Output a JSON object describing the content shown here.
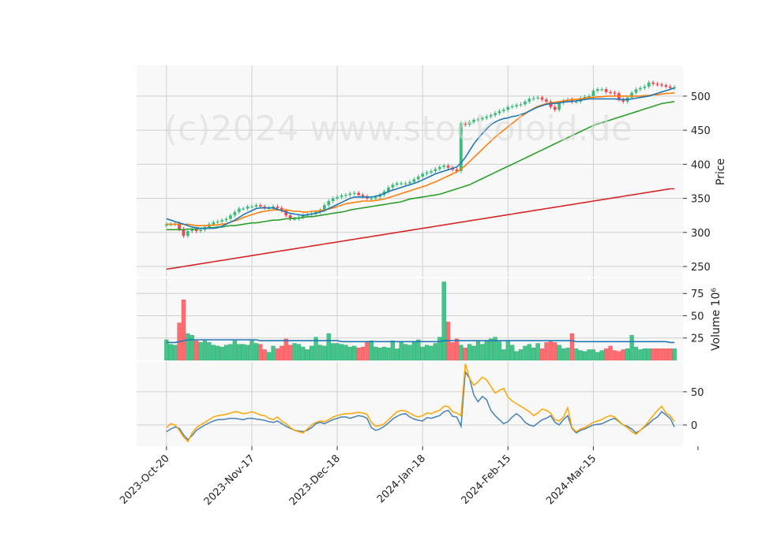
{
  "watermark": "(c)2024 www.stockoloid.de",
  "colors": {
    "up": "#3dbb7a",
    "down": "#f0454e",
    "vol_up": "#43c58a",
    "vol_down": "#ff6b6e",
    "ma_fast": "#1f77b4",
    "ma_mid": "#ff7f0e",
    "ma_slow": "#2ca02c",
    "ma_long": "#d62728",
    "vol_ma": "#1f77b4",
    "osc_a": "#4682b4",
    "osc_b": "#ffa500",
    "grid": "#d0d0d0",
    "panel_bg": "#f8f8f8"
  },
  "chart_data": [
    {
      "type": "candlestick",
      "panel": "price",
      "ylabel": "Price",
      "ylim": [
        235,
        545
      ],
      "yticks": [
        250,
        300,
        350,
        400,
        450,
        500
      ],
      "x_tick_labels": [
        "2023-Oct-20",
        "2023-Nov-17",
        "2023-Dec-18",
        "2024-Jan-18",
        "2024-Feb-15",
        "2024-Mar-15"
      ],
      "x_tick_indices": [
        0,
        20,
        40,
        60,
        80,
        100
      ],
      "x_range": [
        -7,
        121
      ],
      "close": [
        312,
        312,
        313,
        305,
        295,
        302,
        305,
        302,
        304,
        308,
        312,
        315,
        316,
        318,
        320,
        325,
        330,
        335,
        335,
        338,
        338,
        340,
        338,
        336,
        336,
        338,
        336,
        332,
        325,
        320,
        320,
        322,
        325,
        326,
        328,
        330,
        333,
        340,
        346,
        350,
        352,
        354,
        355,
        357,
        358,
        355,
        353,
        350,
        350,
        352,
        355,
        360,
        366,
        370,
        372,
        372,
        372,
        374,
        378,
        382,
        386,
        388,
        390,
        393,
        396,
        398,
        395,
        392,
        390,
        460,
        458,
        462,
        465,
        466,
        468,
        470,
        472,
        475,
        478,
        480,
        484,
        485,
        487,
        488,
        492,
        496,
        497,
        498,
        495,
        492,
        484,
        480,
        490,
        493,
        495,
        492,
        492,
        497,
        499,
        500,
        508,
        510,
        510,
        506,
        505,
        504,
        495,
        492,
        498,
        505,
        510,
        512,
        514,
        520,
        518,
        517,
        516,
        514,
        512,
        513
      ],
      "volume": [
        23,
        18,
        17,
        42,
        68,
        30,
        28,
        22,
        20,
        22,
        20,
        17,
        16,
        15,
        17,
        18,
        22,
        18,
        18,
        17,
        22,
        19,
        18,
        12,
        9,
        16,
        13,
        16,
        24,
        17,
        19,
        18,
        15,
        12,
        16,
        26,
        17,
        16,
        30,
        19,
        19,
        18,
        17,
        15,
        16,
        14,
        15,
        20,
        22,
        15,
        14,
        15,
        14,
        22,
        13,
        20,
        18,
        17,
        21,
        23,
        15,
        17,
        16,
        19,
        26,
        88,
        43,
        20,
        24,
        17,
        14,
        18,
        16,
        21,
        18,
        22,
        24,
        26,
        21,
        12,
        22,
        17,
        10,
        12,
        16,
        18,
        14,
        19,
        13,
        20,
        22,
        20,
        17,
        13,
        14,
        30,
        13,
        11,
        10,
        12,
        12,
        9,
        11,
        13,
        16,
        11,
        10,
        12,
        13,
        28,
        15,
        12,
        13,
        13,
        13,
        13,
        13,
        13,
        13,
        13
      ],
      "indicator_lines": {
        "ma_fast": [
          320,
          318,
          316,
          314,
          312,
          310,
          308,
          307,
          306,
          306,
          306,
          306,
          307,
          309,
          312,
          315,
          318,
          322,
          326,
          329,
          332,
          335,
          336,
          336,
          336,
          336,
          334,
          332,
          330,
          328,
          327,
          326,
          325,
          326,
          327,
          328,
          330,
          332,
          335,
          338,
          341,
          344,
          347,
          350,
          352,
          352,
          352,
          352,
          352,
          353,
          355,
          357,
          360,
          362,
          364,
          366,
          368,
          370,
          372,
          374,
          377,
          380,
          383,
          386,
          388,
          390,
          392,
          394,
          396,
          402,
          410,
          420,
          430,
          438,
          445,
          452,
          458,
          462,
          465,
          467,
          468,
          470,
          471,
          473,
          475,
          478,
          481,
          484,
          486,
          488,
          489,
          489,
          490,
          491,
          492,
          492,
          493,
          494,
          495,
          496,
          496,
          496,
          496,
          496,
          496,
          496,
          495,
          495,
          495,
          496,
          497,
          498,
          499,
          500,
          502,
          504,
          506,
          508,
          510,
          512
        ],
        "ma_mid": [
          312,
          312,
          312,
          312,
          312,
          312,
          311,
          310,
          310,
          310,
          310,
          311,
          311,
          312,
          313,
          315,
          317,
          319,
          322,
          324,
          326,
          328,
          330,
          331,
          332,
          333,
          333,
          333,
          333,
          332,
          331,
          331,
          330,
          330,
          331,
          331,
          332,
          333,
          334,
          336,
          338,
          340,
          342,
          343,
          344,
          345,
          346,
          346,
          346,
          347,
          348,
          349,
          351,
          353,
          355,
          357,
          359,
          361,
          363,
          365,
          367,
          369,
          372,
          374,
          377,
          380,
          383,
          386,
          389,
          393,
          398,
          404,
          410,
          416,
          422,
          428,
          434,
          440,
          445,
          450,
          455,
          460,
          465,
          470,
          474,
          478,
          482,
          485,
          487,
          489,
          490,
          491,
          492,
          493,
          494,
          495,
          495,
          496,
          497,
          498,
          498,
          499,
          499,
          500,
          500,
          500,
          500,
          500,
          500,
          500,
          500,
          500,
          501,
          501,
          502,
          502,
          503,
          504,
          504,
          505
        ],
        "ma_slow": [
          304,
          304,
          304,
          304,
          304,
          305,
          305,
          305,
          306,
          306,
          307,
          307,
          308,
          308,
          309,
          310,
          310,
          311,
          312,
          313,
          314,
          314,
          315,
          316,
          317,
          318,
          318,
          319,
          320,
          320,
          321,
          321,
          322,
          323,
          323,
          324,
          325,
          326,
          327,
          328,
          329,
          330,
          331,
          333,
          334,
          335,
          336,
          337,
          338,
          339,
          340,
          341,
          342,
          343,
          344,
          345,
          347,
          349,
          350,
          351,
          352,
          353,
          354,
          355,
          356,
          358,
          360,
          362,
          364,
          366,
          368,
          370,
          373,
          376,
          379,
          382,
          385,
          388,
          391,
          394,
          397,
          400,
          403,
          406,
          409,
          412,
          415,
          418,
          421,
          424,
          427,
          430,
          433,
          436,
          439,
          442,
          445,
          448,
          451,
          454,
          457,
          459,
          461,
          463,
          465,
          467,
          469,
          471,
          473,
          475,
          477,
          479,
          481,
          483,
          485,
          487,
          489,
          490,
          491,
          492
        ],
        "ma_long": [
          246,
          247,
          248,
          249,
          250,
          251,
          252,
          253,
          254,
          255,
          256,
          257,
          258,
          259,
          260,
          261,
          262,
          263,
          264,
          265,
          266,
          267,
          268,
          269,
          270,
          271,
          272,
          273,
          274,
          275,
          276,
          277,
          278,
          279,
          280,
          281,
          282,
          283,
          284,
          285,
          286,
          287,
          288,
          289,
          290,
          291,
          292,
          293,
          294,
          295,
          296,
          297,
          298,
          299,
          300,
          301,
          302,
          303,
          304,
          305,
          306,
          307,
          308,
          309,
          310,
          311,
          312,
          313,
          314,
          315,
          316,
          317,
          318,
          319,
          320,
          321,
          322,
          323,
          324,
          325,
          326,
          327,
          328,
          329,
          330,
          331,
          332,
          333,
          334,
          335,
          336,
          337,
          338,
          339,
          340,
          341,
          342,
          343,
          344,
          345,
          346,
          347,
          348,
          349,
          350,
          351,
          352,
          353,
          354,
          355,
          356,
          357,
          358,
          359,
          360,
          361,
          362,
          363,
          364,
          364
        ]
      }
    },
    {
      "type": "bar",
      "panel": "volume",
      "ylabel": "Volume  10⁶",
      "ylim": [
        0,
        92
      ],
      "yticks": [
        25,
        50,
        75
      ],
      "vol_ma": [
        20,
        20,
        20,
        21,
        22,
        23,
        23,
        23,
        23,
        23,
        23,
        23,
        23,
        23,
        23,
        23,
        23,
        23,
        23,
        23,
        23,
        23,
        22,
        22,
        22,
        22,
        22,
        22,
        22,
        22,
        22,
        22,
        22,
        22,
        22,
        22,
        22,
        22,
        22,
        22,
        22,
        21,
        21,
        21,
        21,
        21,
        21,
        21,
        21,
        21,
        21,
        21,
        21,
        21,
        21,
        21,
        21,
        21,
        21,
        21,
        21,
        21,
        21,
        21,
        21,
        22,
        22,
        22,
        22,
        22,
        22,
        22,
        22,
        22,
        22,
        22,
        22,
        22,
        22,
        22,
        22,
        22,
        22,
        22,
        22,
        22,
        22,
        22,
        22,
        22,
        22,
        22,
        22,
        22,
        22,
        22,
        21,
        21,
        21,
        21,
        21,
        21,
        21,
        21,
        21,
        21,
        21,
        21,
        21,
        21,
        21,
        21,
        21,
        21,
        21,
        21,
        21,
        21,
        20,
        20
      ]
    },
    {
      "type": "line",
      "panel": "oscillator",
      "ylim": [
        -32,
        95
      ],
      "yticks": [
        0,
        50
      ],
      "series": [
        {
          "key": "osc_a",
          "values": [
            -10,
            -6,
            -3,
            -5,
            -15,
            -22,
            -16,
            -8,
            -4,
            0,
            3,
            6,
            8,
            8,
            9,
            10,
            10,
            9,
            8,
            10,
            10,
            9,
            8,
            7,
            5,
            4,
            6,
            2,
            -2,
            -5,
            -8,
            -9,
            -10,
            -8,
            -4,
            2,
            4,
            2,
            5,
            8,
            10,
            12,
            12,
            10,
            12,
            14,
            13,
            10,
            -4,
            -8,
            -6,
            -2,
            3,
            9,
            13,
            16,
            17,
            12,
            9,
            7,
            6,
            11,
            10,
            12,
            14,
            20,
            22,
            13,
            12,
            -2,
            80,
            70,
            45,
            35,
            43,
            38,
            22,
            14,
            8,
            2,
            5,
            12,
            17,
            12,
            4,
            0,
            -2,
            3,
            8,
            10,
            14,
            4,
            0,
            8,
            14,
            -5,
            -12,
            -8,
            -6,
            -3,
            0,
            1,
            2,
            5,
            8,
            10,
            5,
            0,
            -2,
            -6,
            -12,
            -8,
            -3,
            2,
            8,
            12,
            20,
            15,
            10,
            -3
          ]
        },
        {
          "key": "osc_b",
          "values": [
            -4,
            2,
            0,
            -8,
            -18,
            -25,
            -12,
            -4,
            0,
            4,
            8,
            12,
            14,
            15,
            16,
            18,
            20,
            19,
            17,
            18,
            20,
            18,
            15,
            14,
            10,
            8,
            12,
            6,
            2,
            -4,
            -8,
            -10,
            -12,
            -6,
            0,
            4,
            6,
            5,
            8,
            12,
            14,
            16,
            17,
            17,
            18,
            19,
            18,
            16,
            4,
            -2,
            -1,
            2,
            8,
            14,
            20,
            22,
            21,
            18,
            14,
            12,
            14,
            18,
            17,
            20,
            22,
            28,
            28,
            20,
            18,
            14,
            92,
            70,
            60,
            65,
            72,
            68,
            58,
            48,
            52,
            55,
            42,
            36,
            32,
            28,
            24,
            20,
            14,
            18,
            24,
            22,
            18,
            8,
            6,
            12,
            26,
            -4,
            -10,
            -6,
            -4,
            0,
            4,
            6,
            8,
            12,
            14,
            12,
            6,
            0,
            -4,
            -10,
            -14,
            -8,
            -2,
            6,
            14,
            22,
            28,
            18,
            14,
            5
          ]
        }
      ]
    }
  ]
}
